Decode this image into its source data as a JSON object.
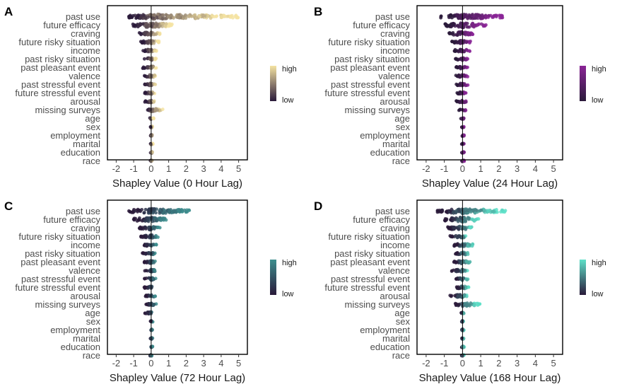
{
  "figure": {
    "features": [
      "past use",
      "future efficacy",
      "craving",
      "future risky situation",
      "income",
      "past risky situation",
      "past pleasant event",
      "valence",
      "past stressful event",
      "future stressful event",
      "arousal",
      "missing surveys",
      "age",
      "sex",
      "employment",
      "marital",
      "education",
      "race"
    ],
    "legend": {
      "high": "high",
      "low": "low"
    }
  },
  "chart_data": [
    {
      "panel_label": "A",
      "type": "scatter",
      "title": "",
      "xlabel": "Shapley Value (0 Hour Lag)",
      "ylabel": "",
      "xlim": [
        -2.5,
        5.5
      ],
      "xticks": [
        "-2",
        "-1",
        "0",
        "1",
        "2",
        "3",
        "4",
        "5"
      ],
      "color_low": "#2a1a3a",
      "color_high": "#f4e3a2",
      "legend_labels": [
        "high",
        "low"
      ],
      "features": [
        {
          "name": "past use",
          "min": -1.3,
          "max": 5.0
        },
        {
          "name": "future efficacy",
          "min": -1.1,
          "max": 1.3
        },
        {
          "name": "craving",
          "min": -0.7,
          "max": 0.5
        },
        {
          "name": "future risky situation",
          "min": -0.6,
          "max": 0.5
        },
        {
          "name": "income",
          "min": -0.5,
          "max": 0.3
        },
        {
          "name": "past risky situation",
          "min": -0.4,
          "max": 0.3
        },
        {
          "name": "past pleasant event",
          "min": -0.5,
          "max": 0.3
        },
        {
          "name": "valence",
          "min": -0.4,
          "max": 0.3
        },
        {
          "name": "past stressful event",
          "min": -0.4,
          "max": 0.3
        },
        {
          "name": "future stressful event",
          "min": -0.4,
          "max": 0.2
        },
        {
          "name": "arousal",
          "min": -0.4,
          "max": 0.2
        },
        {
          "name": "missing surveys",
          "min": -0.2,
          "max": 0.8
        },
        {
          "name": "age",
          "min": -0.1,
          "max": 0.15
        },
        {
          "name": "sex",
          "min": -0.05,
          "max": 0.1
        },
        {
          "name": "employment",
          "min": -0.05,
          "max": 0.1
        },
        {
          "name": "marital",
          "min": -0.05,
          "max": 0.1
        },
        {
          "name": "education",
          "min": -0.05,
          "max": 0.1
        },
        {
          "name": "race",
          "min": -0.05,
          "max": 0.1
        }
      ]
    },
    {
      "panel_label": "B",
      "type": "scatter",
      "title": "",
      "xlabel": "Shapley Value (24 Hour Lag)",
      "ylabel": "",
      "xlim": [
        -2.5,
        5.5
      ],
      "xticks": [
        "-2",
        "-1",
        "0",
        "1",
        "2",
        "3",
        "4",
        "5"
      ],
      "color_low": "#2a1a3a",
      "color_high": "#8a2596",
      "legend_labels": [
        "high",
        "low"
      ],
      "features": [
        {
          "name": "past use",
          "min": -1.2,
          "max": 2.2
        },
        {
          "name": "future efficacy",
          "min": -1.0,
          "max": 1.3
        },
        {
          "name": "craving",
          "min": -0.8,
          "max": 0.6
        },
        {
          "name": "future risky situation",
          "min": -0.6,
          "max": 0.5
        },
        {
          "name": "income",
          "min": -0.5,
          "max": 0.4
        },
        {
          "name": "past risky situation",
          "min": -0.4,
          "max": 0.3
        },
        {
          "name": "past pleasant event",
          "min": -0.4,
          "max": 0.3
        },
        {
          "name": "valence",
          "min": -0.4,
          "max": 0.3
        },
        {
          "name": "past stressful event",
          "min": -0.4,
          "max": 0.3
        },
        {
          "name": "future stressful event",
          "min": -0.4,
          "max": 0.2
        },
        {
          "name": "arousal",
          "min": -0.4,
          "max": 0.3
        },
        {
          "name": "missing surveys",
          "min": -0.2,
          "max": 0.2
        },
        {
          "name": "age",
          "min": -0.1,
          "max": 0.1
        },
        {
          "name": "sex",
          "min": -0.05,
          "max": 0.1
        },
        {
          "name": "employment",
          "min": -0.05,
          "max": 0.1
        },
        {
          "name": "marital",
          "min": -0.05,
          "max": 0.1
        },
        {
          "name": "education",
          "min": -0.05,
          "max": 0.1
        },
        {
          "name": "race",
          "min": -0.05,
          "max": 0.1
        }
      ]
    },
    {
      "panel_label": "C",
      "type": "scatter",
      "title": "",
      "xlabel": "Shapley Value (72 Hour Lag)",
      "ylabel": "",
      "xlim": [
        -2.5,
        5.5
      ],
      "xticks": [
        "-2",
        "-1",
        "0",
        "1",
        "2",
        "3",
        "4",
        "5"
      ],
      "color_low": "#2a1a3a",
      "color_high": "#3d8e8e",
      "legend_labels": [
        "high",
        "low"
      ],
      "features": [
        {
          "name": "past use",
          "min": -1.3,
          "max": 2.2
        },
        {
          "name": "future efficacy",
          "min": -1.0,
          "max": 0.9
        },
        {
          "name": "craving",
          "min": -0.7,
          "max": 0.5
        },
        {
          "name": "future risky situation",
          "min": -0.6,
          "max": 0.4
        },
        {
          "name": "income",
          "min": -0.5,
          "max": 0.3
        },
        {
          "name": "past risky situation",
          "min": -0.5,
          "max": 0.3
        },
        {
          "name": "past pleasant event",
          "min": -0.4,
          "max": 0.3
        },
        {
          "name": "valence",
          "min": -0.4,
          "max": 0.3
        },
        {
          "name": "past stressful event",
          "min": -0.4,
          "max": 0.3
        },
        {
          "name": "future stressful event",
          "min": -0.4,
          "max": 0.2
        },
        {
          "name": "arousal",
          "min": -0.4,
          "max": 0.3
        },
        {
          "name": "missing surveys",
          "min": -0.3,
          "max": 0.4
        },
        {
          "name": "age",
          "min": -0.4,
          "max": 0.1
        },
        {
          "name": "sex",
          "min": -0.05,
          "max": 0.1
        },
        {
          "name": "employment",
          "min": -0.05,
          "max": 0.1
        },
        {
          "name": "marital",
          "min": -0.05,
          "max": 0.1
        },
        {
          "name": "education",
          "min": -0.05,
          "max": 0.1
        },
        {
          "name": "race",
          "min": -0.15,
          "max": 0.05
        }
      ]
    },
    {
      "panel_label": "D",
      "type": "scatter",
      "title": "",
      "xlabel": "Shapley Value (168 Hour Lag)",
      "ylabel": "",
      "xlim": [
        -2.5,
        5.5
      ],
      "xticks": [
        "-2",
        "-1",
        "0",
        "1",
        "2",
        "3",
        "4",
        "5"
      ],
      "color_low": "#2a1a3a",
      "color_high": "#5ee0c8",
      "legend_labels": [
        "high",
        "low"
      ],
      "features": [
        {
          "name": "past use",
          "min": -1.4,
          "max": 2.4
        },
        {
          "name": "future efficacy",
          "min": -1.0,
          "max": 0.9
        },
        {
          "name": "craving",
          "min": -0.9,
          "max": 0.6
        },
        {
          "name": "future risky situation",
          "min": -0.7,
          "max": 0.2
        },
        {
          "name": "income",
          "min": -0.5,
          "max": 0.7
        },
        {
          "name": "past risky situation",
          "min": -0.4,
          "max": 0.4
        },
        {
          "name": "past pleasant event",
          "min": -0.5,
          "max": 0.6
        },
        {
          "name": "valence",
          "min": -0.6,
          "max": 0.3
        },
        {
          "name": "past stressful event",
          "min": -0.4,
          "max": 0.4
        },
        {
          "name": "future stressful event",
          "min": -0.4,
          "max": 0.4
        },
        {
          "name": "arousal",
          "min": -0.7,
          "max": 0.3
        },
        {
          "name": "missing surveys",
          "min": -0.4,
          "max": 1.0
        },
        {
          "name": "age",
          "min": -0.1,
          "max": 0.1
        },
        {
          "name": "sex",
          "min": -0.05,
          "max": 0.05
        },
        {
          "name": "employment",
          "min": -0.05,
          "max": 0.1
        },
        {
          "name": "marital",
          "min": -0.05,
          "max": 0.1
        },
        {
          "name": "education",
          "min": -0.05,
          "max": 0.1
        },
        {
          "name": "race",
          "min": -0.05,
          "max": 0.1
        }
      ]
    }
  ]
}
